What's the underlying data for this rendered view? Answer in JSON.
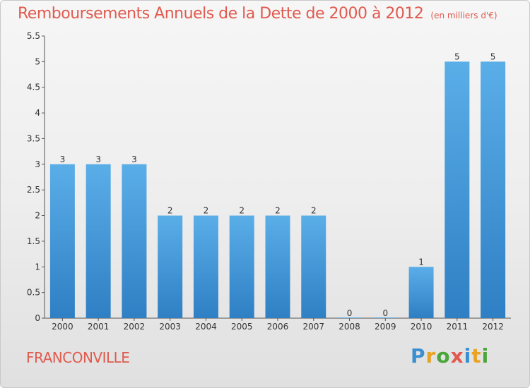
{
  "page": {
    "title": "Remboursements Annuels de la Dette de 2000 à 2012",
    "subtitle": "(en milliers d'€)",
    "commune": "FRANCONVILLE",
    "logo_text": "Proxiti"
  },
  "colors": {
    "title": "#e05a4e",
    "bar_top": "#5aaee8",
    "bar_bottom": "#2f7fc4",
    "logo_letters": [
      "#3a8fd1",
      "#e8a323",
      "#4aa53b",
      "#e05a4e",
      "#3a8fd1",
      "#e8a323",
      "#4aa53b"
    ]
  },
  "chart_data": {
    "type": "bar",
    "title": "Remboursements Annuels de la Dette de 2000 à 2012",
    "subtitle": "(en milliers d'€)",
    "categories": [
      "2000",
      "2001",
      "2002",
      "2003",
      "2004",
      "2005",
      "2006",
      "2007",
      "2008",
      "2009",
      "2010",
      "2011",
      "2012"
    ],
    "values": [
      3,
      3,
      3,
      2,
      2,
      2,
      2,
      2,
      0,
      0,
      1,
      5,
      5
    ],
    "ylim": [
      0,
      5.5
    ],
    "yticks": [
      0,
      0.5,
      1,
      1.5,
      2,
      2.5,
      3,
      3.5,
      4,
      4.5,
      5,
      5.5
    ],
    "ytick_labels": [
      "0",
      "0.5",
      "1",
      "1.5",
      "2",
      "2.5",
      "3",
      "3.5",
      "4",
      "4.5",
      "5",
      "5.5"
    ],
    "grid": false,
    "data_labels": true
  }
}
